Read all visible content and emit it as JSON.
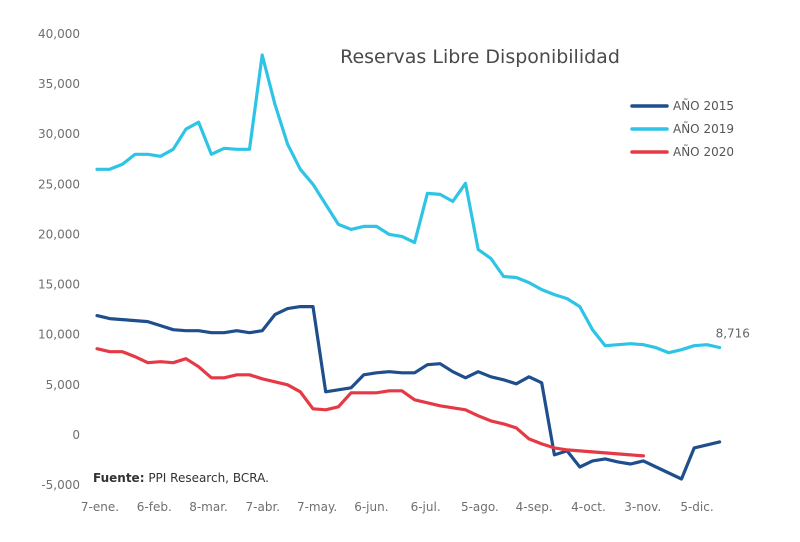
{
  "chart_data": {
    "type": "line",
    "title": "Reservas Libre Disponibilidad",
    "xlabel": "",
    "ylabel": "",
    "ylim": [
      -5000,
      40000
    ],
    "yticks": [
      40000,
      35000,
      30000,
      25000,
      20000,
      15000,
      10000,
      5000,
      0,
      -5000
    ],
    "ytick_labels": [
      "40,000",
      "35,000",
      "30,000",
      "25,000",
      "20,000",
      "15,000",
      "10,000",
      "5,000",
      "0",
      "-5,000"
    ],
    "xtick_labels": [
      "7-ene.",
      "6-feb.",
      "8-mar.",
      "7-abr.",
      "7-may.",
      "6-jun.",
      "6-jul.",
      "5-ago.",
      "4-sep.",
      "4-oct.",
      "3-nov.",
      "5-dic."
    ],
    "n_points": 52,
    "legend_position": "top-right",
    "series": [
      {
        "name": "AÑO 2015",
        "color": "#1f4e8c",
        "values": [
          11900,
          11600,
          11500,
          11400,
          11300,
          10900,
          10500,
          10400,
          10400,
          10200,
          10200,
          10400,
          10200,
          10400,
          12000,
          12600,
          12800,
          12800,
          4300,
          4500,
          4700,
          6000,
          6200,
          6300,
          6200,
          6200,
          7000,
          7100,
          6300,
          5700,
          6300,
          5800,
          5500,
          5100,
          5800,
          5200,
          -2000,
          -1600,
          -3200,
          -2600,
          -2400,
          -2700,
          -2900,
          -2600,
          -3200,
          -3800,
          -4400,
          -1300,
          -1000,
          -700
        ]
      },
      {
        "name": "AÑO 2019",
        "color": "#2ec4e6",
        "values": [
          26500,
          26500,
          27000,
          28000,
          28000,
          27800,
          28500,
          30500,
          31200,
          28000,
          28600,
          28500,
          28500,
          37900,
          33000,
          29000,
          26500,
          25000,
          23000,
          21000,
          20500,
          20800,
          20800,
          20000,
          19800,
          19200,
          24100,
          24000,
          23300,
          25100,
          18500,
          17600,
          15800,
          15700,
          15200,
          14500,
          14000,
          13600,
          12800,
          10500,
          8900,
          9000,
          9100,
          9000,
          8700,
          8200,
          8500,
          8900,
          9000,
          8716
        ]
      },
      {
        "name": "AÑO 2020",
        "color": "#e63946",
        "values": [
          8600,
          8300,
          8300,
          7800,
          7200,
          7300,
          7200,
          7600,
          6800,
          5700,
          5700,
          6000,
          6000,
          5600,
          5300,
          5000,
          4300,
          2600,
          2500,
          2800,
          4200,
          4200,
          4200,
          4400,
          4400,
          3500,
          3200,
          2900,
          2700,
          2500,
          1900,
          1400,
          1100,
          700,
          -400,
          -900,
          -1300,
          -1500,
          -1600,
          -1700,
          -1800,
          -1900,
          -2000,
          -2100
        ]
      }
    ],
    "annotations": [
      {
        "text": "8,716",
        "series": "AÑO 2019",
        "point": "last"
      }
    ],
    "source_label": "Fuente:",
    "source_text": " PPI Research, BCRA."
  }
}
